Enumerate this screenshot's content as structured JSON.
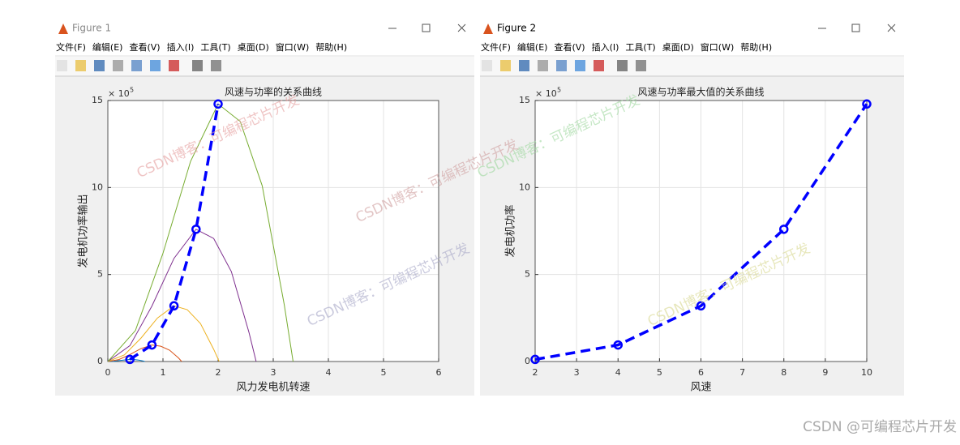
{
  "windows": [
    {
      "title": "Figure 1",
      "menu": [
        "文件(F)",
        "编辑(E)",
        "查看(V)",
        "插入(I)",
        "工具(T)",
        "桌面(D)",
        "窗口(W)",
        "帮助(H)"
      ],
      "chart": {
        "type": "line",
        "title": "风速与功率的关系曲线",
        "x_label": "风力发电机转速",
        "y_label": "发电机功率输出",
        "y_exponent_base": "× 10",
        "y_exponent": 5,
        "xlim": [
          0,
          6
        ],
        "xticks": [
          0,
          1,
          2,
          3,
          4,
          5,
          6
        ],
        "ylim": [
          0,
          15
        ],
        "yticks": [
          0,
          5,
          10,
          15
        ],
        "grid": true,
        "series": [
          {
            "color": "#0072bd",
            "line_style": "solid",
            "line_width": 1,
            "x": [
              0,
              0.1,
              0.2,
              0.3,
              0.4,
              0.48,
              0.56,
              0.64,
              0.67
            ],
            "values": [
              0,
              0.01,
              0.05,
              0.09,
              0.12,
              0.11,
              0.08,
              0.03,
              0
            ]
          },
          {
            "color": "#d95319",
            "line_style": "solid",
            "line_width": 1,
            "x": [
              0,
              0.2,
              0.4,
              0.6,
              0.8,
              0.96,
              1.12,
              1.28,
              1.34
            ],
            "values": [
              0,
              0.11,
              0.4,
              0.74,
              0.95,
              0.88,
              0.65,
              0.21,
              0
            ]
          },
          {
            "color": "#edb120",
            "line_style": "solid",
            "line_width": 1,
            "x": [
              0,
              0.3,
              0.6,
              0.9,
              1.2,
              1.44,
              1.68,
              1.92,
              2.02
            ],
            "values": [
              0,
              0.38,
              1.34,
              2.5,
              3.2,
              2.98,
              2.18,
              0.7,
              0
            ]
          },
          {
            "color": "#7e2f8e",
            "line_style": "solid",
            "line_width": 1,
            "x": [
              0,
              0.4,
              0.8,
              1.2,
              1.6,
              1.92,
              2.24,
              2.56,
              2.69
            ],
            "values": [
              0,
              0.91,
              3.19,
              5.93,
              7.6,
              7.07,
              5.17,
              1.67,
              0
            ]
          },
          {
            "color": "#77ac30",
            "line_style": "solid",
            "line_width": 1,
            "x": [
              0,
              0.5,
              1,
              1.5,
              2,
              2.4,
              2.8,
              3.2,
              3.36
            ],
            "values": [
              0,
              1.78,
              6.22,
              11.5,
              14.8,
              13.8,
              10.1,
              3.26,
              0
            ]
          },
          {
            "color": "#0000ff",
            "line_style": "dashed",
            "line_width": 3.5,
            "marker": "o",
            "x": [
              0.4,
              0.8,
              1.2,
              1.6,
              2
            ],
            "values": [
              0.12,
              0.95,
              3.2,
              7.6,
              14.8
            ]
          }
        ]
      }
    },
    {
      "title": "Figure 2",
      "menu": [
        "文件(F)",
        "编辑(E)",
        "查看(V)",
        "插入(I)",
        "工具(T)",
        "桌面(D)",
        "窗口(W)",
        "帮助(H)"
      ],
      "chart": {
        "type": "line",
        "title": "风速与功率最大值的关系曲线",
        "x_label": "风速",
        "y_label": "发电机功率",
        "y_exponent_base": "× 10",
        "y_exponent": 5,
        "xlim": [
          2,
          10
        ],
        "xticks": [
          2,
          3,
          4,
          5,
          6,
          7,
          8,
          9,
          10
        ],
        "ylim": [
          0,
          15
        ],
        "yticks": [
          0,
          5,
          10,
          15
        ],
        "grid": true,
        "series": [
          {
            "color": "#0000ff",
            "line_style": "dashed",
            "line_width": 3.5,
            "marker": "o",
            "x": [
              2,
              4,
              6,
              8,
              10
            ],
            "values": [
              0.12,
              0.95,
              3.2,
              7.6,
              14.8
            ]
          }
        ]
      }
    }
  ],
  "overlay_watermark": "CSDN博客：可编程芯片开发",
  "footer_watermark": "CSDN @可编程芯片开发"
}
